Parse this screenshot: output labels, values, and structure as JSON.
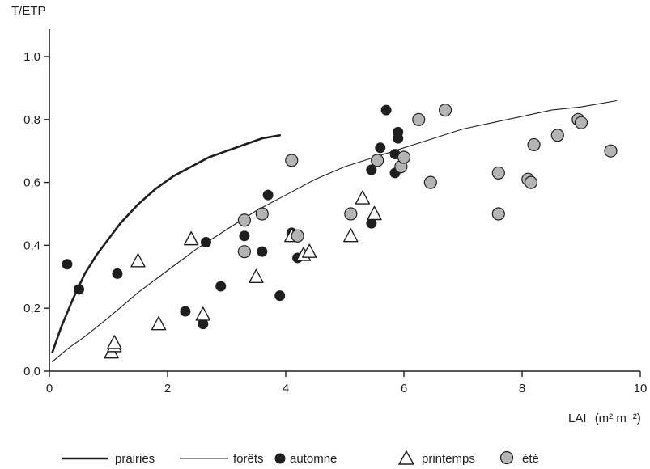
{
  "chart_data": {
    "type": "scatter",
    "ylabel": "T/ETP",
    "xlabel": "LAI",
    "xlabel_unit": "(m² m⁻²)",
    "xlim": [
      0,
      10
    ],
    "ylim": [
      0,
      1.0
    ],
    "x_ticks": [
      "0",
      "2",
      "4",
      "6",
      "8",
      "10"
    ],
    "y_ticks": [
      "0,0",
      "0,2",
      "0,4",
      "0,6",
      "0,8",
      "1,0"
    ],
    "grid": false,
    "legend_position": "bottom",
    "colors": {
      "ink": "#1e1e1e",
      "ete_fill": "#b4b4b4",
      "background": "#ffffff"
    },
    "series": [
      {
        "name": "prairies",
        "kind": "curve",
        "style": "thick-line",
        "x": [
          0.05,
          0.2,
          0.4,
          0.6,
          0.8,
          1.0,
          1.2,
          1.5,
          1.8,
          2.1,
          2.4,
          2.7,
          3.0,
          3.3,
          3.6,
          3.9
        ],
        "y": [
          0.06,
          0.14,
          0.23,
          0.31,
          0.37,
          0.42,
          0.47,
          0.53,
          0.58,
          0.62,
          0.65,
          0.68,
          0.7,
          0.72,
          0.74,
          0.75
        ]
      },
      {
        "name": "forêts",
        "kind": "curve",
        "style": "thin-line",
        "x": [
          0.05,
          0.3,
          0.6,
          1.0,
          1.5,
          2.0,
          2.5,
          3.0,
          3.5,
          4.0,
          4.5,
          5.0,
          5.5,
          6.0,
          6.5,
          7.0,
          7.5,
          8.0,
          8.5,
          9.0,
          9.6
        ],
        "y": [
          0.03,
          0.07,
          0.11,
          0.17,
          0.25,
          0.32,
          0.39,
          0.45,
          0.51,
          0.56,
          0.61,
          0.65,
          0.68,
          0.71,
          0.74,
          0.77,
          0.79,
          0.81,
          0.83,
          0.84,
          0.86
        ]
      },
      {
        "name": "automne",
        "kind": "points",
        "marker": "filled-circle",
        "x": [
          0.3,
          0.5,
          1.15,
          2.3,
          2.6,
          2.65,
          2.9,
          3.3,
          3.3,
          3.6,
          3.7,
          3.9,
          4.1,
          4.2,
          5.45,
          5.45,
          5.6,
          5.7,
          5.85,
          5.85,
          5.9,
          5.9
        ],
        "y": [
          0.34,
          0.26,
          0.31,
          0.19,
          0.15,
          0.41,
          0.27,
          0.43,
          0.38,
          0.38,
          0.56,
          0.24,
          0.44,
          0.36,
          0.64,
          0.47,
          0.71,
          0.83,
          0.63,
          0.69,
          0.76,
          0.74
        ]
      },
      {
        "name": "printemps",
        "kind": "points",
        "marker": "open-triangle",
        "x": [
          1.05,
          1.1,
          1.1,
          1.5,
          1.85,
          2.4,
          2.6,
          3.5,
          4.1,
          4.3,
          4.4,
          5.1,
          5.3,
          5.5
        ],
        "y": [
          0.06,
          0.08,
          0.09,
          0.35,
          0.15,
          0.42,
          0.18,
          0.3,
          0.43,
          0.37,
          0.38,
          0.43,
          0.55,
          0.5
        ]
      },
      {
        "name": "été",
        "kind": "points",
        "marker": "grey-circle",
        "x": [
          3.3,
          3.3,
          3.6,
          4.1,
          4.2,
          5.1,
          5.55,
          5.95,
          6.0,
          6.25,
          6.45,
          6.7,
          7.6,
          7.6,
          8.1,
          8.15,
          8.2,
          8.6,
          8.95,
          9.0,
          9.5
        ],
        "y": [
          0.48,
          0.38,
          0.5,
          0.67,
          0.43,
          0.5,
          0.67,
          0.65,
          0.68,
          0.8,
          0.6,
          0.83,
          0.63,
          0.5,
          0.61,
          0.6,
          0.72,
          0.75,
          0.8,
          0.79,
          0.7
        ]
      }
    ]
  }
}
